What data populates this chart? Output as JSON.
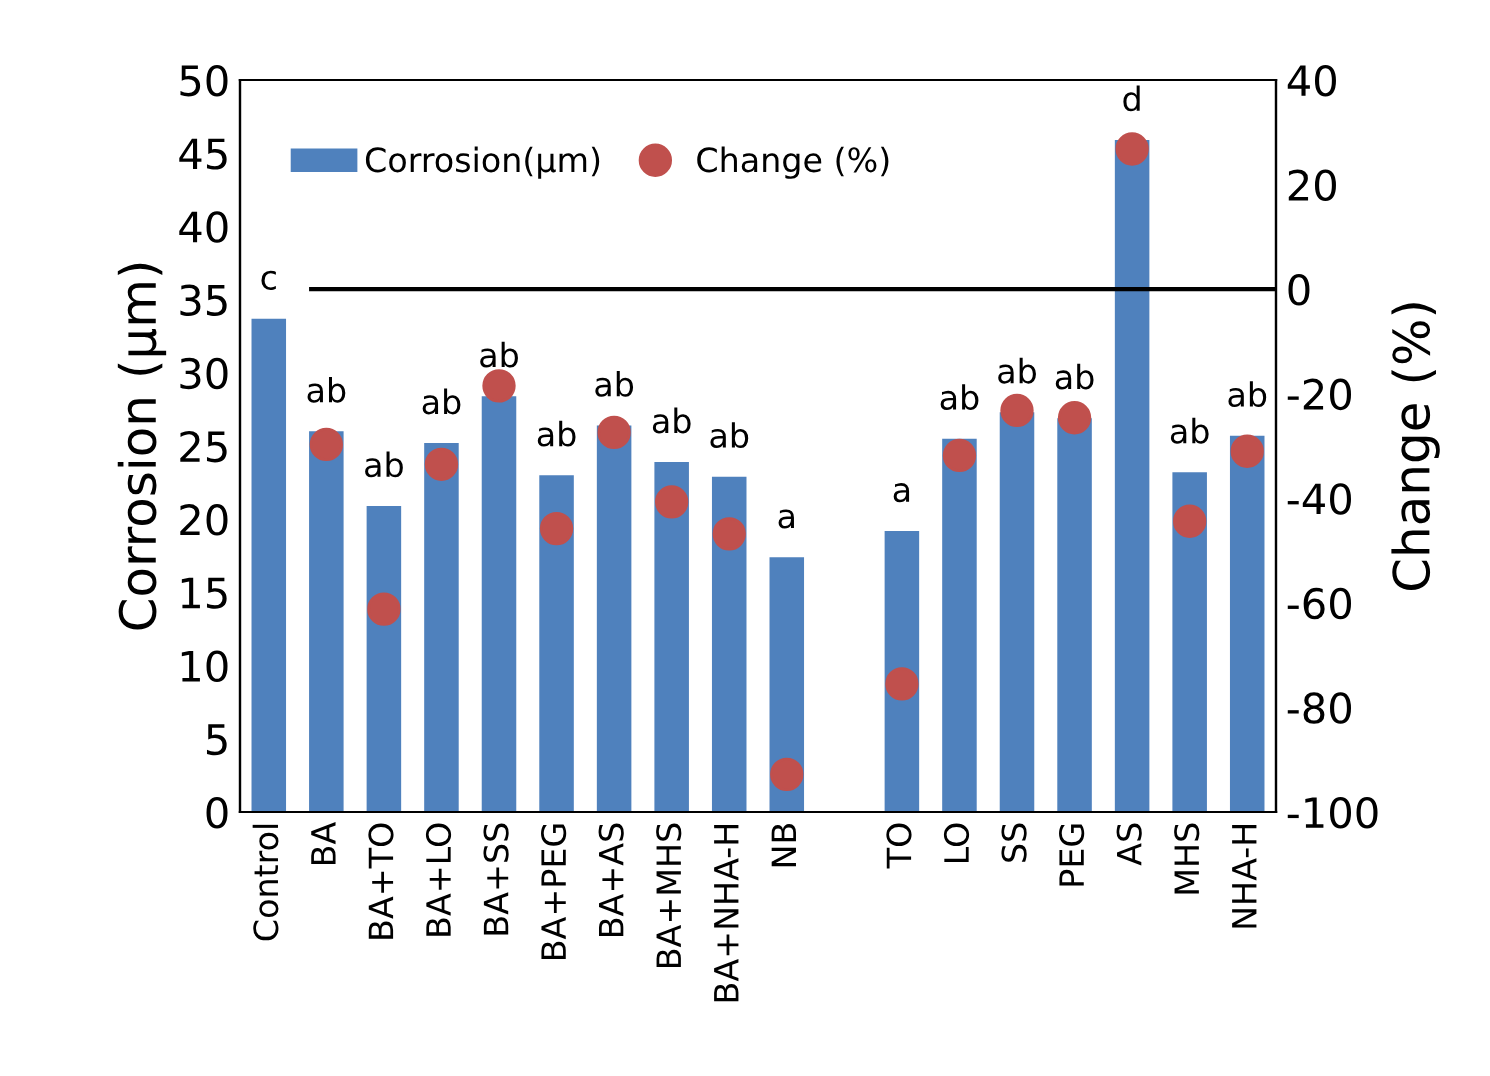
{
  "chart_data": {
    "type": "bar",
    "categories": [
      "Control",
      "BA",
      "BA+TO",
      "BA+LO",
      "BA+SS",
      "BA+PEG",
      "BA+AS",
      "BA+MHS",
      "BA+NHA-H",
      "NB",
      null,
      "TO",
      "LO",
      "SS",
      "PEG",
      "AS",
      "MHS",
      "NHA-H"
    ],
    "series": [
      {
        "name": "Corrosion(µm)",
        "color": "#4f81bd",
        "values": [
          33.7,
          26.0,
          20.9,
          25.2,
          28.4,
          23.0,
          26.4,
          23.9,
          22.9,
          17.4,
          null,
          19.2,
          25.5,
          27.3,
          26.9,
          45.9,
          23.2,
          25.7
        ],
        "value_labels": [
          "c",
          "ab",
          "ab",
          "ab",
          "ab",
          "ab",
          "ab",
          "ab",
          "ab",
          "a",
          null,
          "a",
          "ab",
          "ab",
          "ab",
          "d",
          "ab",
          "ab"
        ]
      },
      {
        "name": "Change (%)",
        "type": "scatter",
        "axis": "y2",
        "color": "#c0504d",
        "values": [
          null,
          -29.7,
          -61.2,
          -33.5,
          -18.5,
          -45.8,
          -27.4,
          -40.7,
          -46.8,
          -92.8,
          null,
          -75.5,
          -31.8,
          -23.2,
          -24.6,
          26.8,
          -44.4,
          -31.0
        ]
      }
    ],
    "ylabel": "Corrosion (µm)",
    "y2label": "Change (%)",
    "ylim": [
      0,
      50
    ],
    "yticks": [
      0,
      5,
      10,
      15,
      20,
      25,
      30,
      35,
      40,
      45,
      50
    ],
    "y2lim": [
      -100,
      40
    ],
    "y2ticks": [
      -100,
      -80,
      -60,
      -40,
      -20,
      0,
      20,
      40
    ],
    "ref_lines": [
      {
        "axis": "y2",
        "value": 0,
        "color": "#000000"
      }
    ],
    "marker": "circle",
    "grid": false,
    "legend": "top left"
  }
}
